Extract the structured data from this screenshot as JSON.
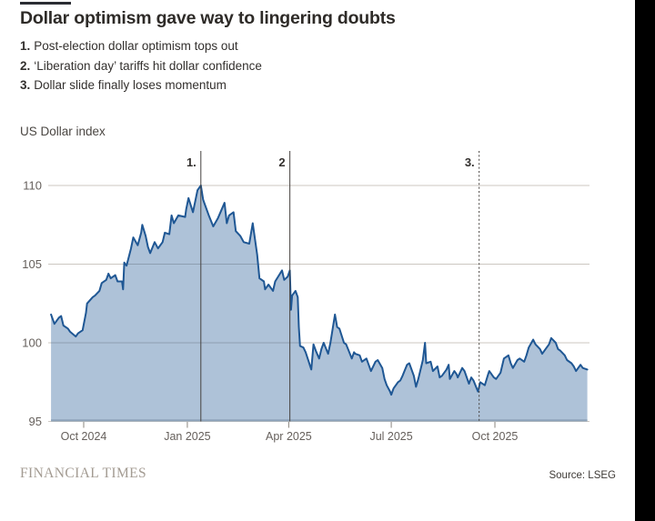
{
  "header": {
    "title": "Dollar optimism gave way to lingering doubts",
    "annotations": [
      {
        "num": "1.",
        "text": "Post-election dollar optimism tops out"
      },
      {
        "num": "2.",
        "text": "‘Liberation day’ tariffs hit dollar confidence"
      },
      {
        "num": "3.",
        "text": "Dollar slide finally loses momentum"
      }
    ]
  },
  "footer": {
    "brand": "FINANCIAL TIMES",
    "source": "Source: LSEG"
  },
  "chart_data": {
    "type": "area",
    "axis_title": "US Dollar index",
    "ylim": [
      95,
      110.8
    ],
    "ytick_labels": [
      "110",
      "105",
      "100",
      "95"
    ],
    "yticks": [
      110,
      105,
      100,
      95
    ],
    "xtick_labels": [
      "Oct 2024",
      "Jan 2025",
      "Apr 2025",
      "Jul 2025",
      "Oct 2025"
    ],
    "xticks": [
      "2024-10-01",
      "2025-01-01",
      "2025-04-01",
      "2025-07-01",
      "2025-10-01"
    ],
    "grid": true,
    "legend": "none",
    "events": [
      {
        "label": "1.",
        "date": "2025-01-13",
        "style": "solid"
      },
      {
        "label": "2",
        "date": "2025-04-02",
        "style": "solid"
      },
      {
        "label": "3.",
        "date": "2025-09-17",
        "style": "dashed"
      }
    ],
    "colors": {
      "line": "#1f5794",
      "fill": "#a9bdd7",
      "grid": "#ccc7c1",
      "event_line": "#46423f",
      "tick_text": "#66605c",
      "baseline_edge": "#8da3ba"
    },
    "series": [
      [
        "2024-09-02",
        101.8
      ],
      [
        "2024-09-05",
        101.2
      ],
      [
        "2024-09-09",
        101.6
      ],
      [
        "2024-09-11",
        101.7
      ],
      [
        "2024-09-13",
        101.1
      ],
      [
        "2024-09-17",
        100.9
      ],
      [
        "2024-09-19",
        100.7
      ],
      [
        "2024-09-24",
        100.4
      ],
      [
        "2024-09-26",
        100.6
      ],
      [
        "2024-09-30",
        100.8
      ],
      [
        "2024-10-03",
        101.9
      ],
      [
        "2024-10-04",
        102.5
      ],
      [
        "2024-10-09",
        102.9
      ],
      [
        "2024-10-11",
        103.0
      ],
      [
        "2024-10-15",
        103.3
      ],
      [
        "2024-10-17",
        103.8
      ],
      [
        "2024-10-21",
        104.0
      ],
      [
        "2024-10-23",
        104.4
      ],
      [
        "2024-10-25",
        104.1
      ],
      [
        "2024-10-29",
        104.3
      ],
      [
        "2024-10-31",
        103.9
      ],
      [
        "2024-11-04",
        103.9
      ],
      [
        "2024-11-05",
        103.4
      ],
      [
        "2024-11-06",
        105.1
      ],
      [
        "2024-11-08",
        104.9
      ],
      [
        "2024-11-12",
        106.0
      ],
      [
        "2024-11-14",
        106.7
      ],
      [
        "2024-11-18",
        106.2
      ],
      [
        "2024-11-21",
        107.0
      ],
      [
        "2024-11-22",
        107.5
      ],
      [
        "2024-11-25",
        106.8
      ],
      [
        "2024-11-27",
        106.1
      ],
      [
        "2024-11-29",
        105.7
      ],
      [
        "2024-12-03",
        106.4
      ],
      [
        "2024-12-06",
        106.0
      ],
      [
        "2024-12-10",
        106.4
      ],
      [
        "2024-12-12",
        107.0
      ],
      [
        "2024-12-16",
        106.9
      ],
      [
        "2024-12-18",
        108.1
      ],
      [
        "2024-12-20",
        107.6
      ],
      [
        "2024-12-24",
        108.1
      ],
      [
        "2024-12-30",
        108.0
      ],
      [
        "2024-12-31",
        108.5
      ],
      [
        "2025-01-02",
        109.2
      ],
      [
        "2025-01-06",
        108.3
      ],
      [
        "2025-01-08",
        109.0
      ],
      [
        "2025-01-10",
        109.7
      ],
      [
        "2025-01-13",
        110.0
      ],
      [
        "2025-01-15",
        109.1
      ],
      [
        "2025-01-16",
        108.9
      ],
      [
        "2025-01-20",
        108.1
      ],
      [
        "2025-01-24",
        107.4
      ],
      [
        "2025-01-28",
        107.9
      ],
      [
        "2025-01-31",
        108.4
      ],
      [
        "2025-02-03",
        108.9
      ],
      [
        "2025-02-05",
        107.6
      ],
      [
        "2025-02-07",
        108.1
      ],
      [
        "2025-02-11",
        108.3
      ],
      [
        "2025-02-13",
        107.1
      ],
      [
        "2025-02-17",
        106.8
      ],
      [
        "2025-02-20",
        106.4
      ],
      [
        "2025-02-25",
        106.3
      ],
      [
        "2025-02-28",
        107.6
      ],
      [
        "2025-03-04",
        105.6
      ],
      [
        "2025-03-06",
        104.1
      ],
      [
        "2025-03-10",
        103.9
      ],
      [
        "2025-03-11",
        103.4
      ],
      [
        "2025-03-14",
        103.7
      ],
      [
        "2025-03-18",
        103.3
      ],
      [
        "2025-03-20",
        103.9
      ],
      [
        "2025-03-26",
        104.6
      ],
      [
        "2025-03-28",
        104.0
      ],
      [
        "2025-03-31",
        104.2
      ],
      [
        "2025-04-02",
        104.6
      ],
      [
        "2025-04-03",
        102.1
      ],
      [
        "2025-04-04",
        103.0
      ],
      [
        "2025-04-07",
        103.3
      ],
      [
        "2025-04-09",
        102.9
      ],
      [
        "2025-04-10",
        101.0
      ],
      [
        "2025-04-11",
        99.8
      ],
      [
        "2025-04-14",
        99.7
      ],
      [
        "2025-04-16",
        99.4
      ],
      [
        "2025-04-21",
        98.3
      ],
      [
        "2025-04-23",
        99.9
      ],
      [
        "2025-04-25",
        99.5
      ],
      [
        "2025-04-28",
        99.0
      ],
      [
        "2025-04-30",
        99.6
      ],
      [
        "2025-05-02",
        100.0
      ],
      [
        "2025-05-06",
        99.3
      ],
      [
        "2025-05-08",
        100.0
      ],
      [
        "2025-05-12",
        101.8
      ],
      [
        "2025-05-14",
        101.0
      ],
      [
        "2025-05-16",
        100.9
      ],
      [
        "2025-05-20",
        100.0
      ],
      [
        "2025-05-22",
        99.9
      ],
      [
        "2025-05-27",
        99.0
      ],
      [
        "2025-05-29",
        99.4
      ],
      [
        "2025-05-30",
        99.3
      ],
      [
        "2025-06-03",
        99.2
      ],
      [
        "2025-06-05",
        98.8
      ],
      [
        "2025-06-09",
        99.0
      ],
      [
        "2025-06-11",
        98.6
      ],
      [
        "2025-06-13",
        98.2
      ],
      [
        "2025-06-17",
        98.8
      ],
      [
        "2025-06-19",
        98.9
      ],
      [
        "2025-06-23",
        98.4
      ],
      [
        "2025-06-25",
        97.7
      ],
      [
        "2025-06-27",
        97.3
      ],
      [
        "2025-06-30",
        96.9
      ],
      [
        "2025-07-01",
        96.7
      ],
      [
        "2025-07-03",
        97.1
      ],
      [
        "2025-07-07",
        97.5
      ],
      [
        "2025-07-09",
        97.6
      ],
      [
        "2025-07-11",
        97.9
      ],
      [
        "2025-07-15",
        98.6
      ],
      [
        "2025-07-17",
        98.7
      ],
      [
        "2025-07-21",
        97.9
      ],
      [
        "2025-07-23",
        97.2
      ],
      [
        "2025-07-25",
        97.7
      ],
      [
        "2025-07-29",
        98.9
      ],
      [
        "2025-07-31",
        100.0
      ],
      [
        "2025-08-01",
        98.7
      ],
      [
        "2025-08-05",
        98.8
      ],
      [
        "2025-08-07",
        98.2
      ],
      [
        "2025-08-11",
        98.5
      ],
      [
        "2025-08-13",
        97.8
      ],
      [
        "2025-08-15",
        97.9
      ],
      [
        "2025-08-19",
        98.3
      ],
      [
        "2025-08-21",
        98.6
      ],
      [
        "2025-08-22",
        97.7
      ],
      [
        "2025-08-26",
        98.2
      ],
      [
        "2025-08-28",
        98.0
      ],
      [
        "2025-08-29",
        97.8
      ],
      [
        "2025-09-02",
        98.4
      ],
      [
        "2025-09-04",
        98.2
      ],
      [
        "2025-09-08",
        97.4
      ],
      [
        "2025-09-10",
        97.8
      ],
      [
        "2025-09-12",
        97.6
      ],
      [
        "2025-09-16",
        96.9
      ],
      [
        "2025-09-18",
        97.5
      ],
      [
        "2025-09-22",
        97.3
      ],
      [
        "2025-09-25",
        98.0
      ],
      [
        "2025-09-26",
        98.2
      ],
      [
        "2025-09-30",
        97.8
      ],
      [
        "2025-10-02",
        97.7
      ],
      [
        "2025-10-06",
        98.1
      ],
      [
        "2025-10-09",
        99.0
      ],
      [
        "2025-10-13",
        99.2
      ],
      [
        "2025-10-15",
        98.7
      ],
      [
        "2025-10-17",
        98.4
      ],
      [
        "2025-10-21",
        98.9
      ],
      [
        "2025-10-23",
        99.0
      ],
      [
        "2025-10-27",
        98.8
      ],
      [
        "2025-10-29",
        99.2
      ],
      [
        "2025-10-31",
        99.7
      ],
      [
        "2025-11-04",
        100.2
      ],
      [
        "2025-11-06",
        99.9
      ],
      [
        "2025-11-10",
        99.6
      ],
      [
        "2025-11-12",
        99.3
      ],
      [
        "2025-11-14",
        99.5
      ],
      [
        "2025-11-18",
        99.9
      ],
      [
        "2025-11-20",
        100.3
      ],
      [
        "2025-11-24",
        100.0
      ],
      [
        "2025-11-26",
        99.6
      ],
      [
        "2025-11-28",
        99.5
      ],
      [
        "2025-12-02",
        99.2
      ],
      [
        "2025-12-04",
        98.9
      ],
      [
        "2025-12-08",
        98.7
      ],
      [
        "2025-12-10",
        98.5
      ],
      [
        "2025-12-12",
        98.2
      ],
      [
        "2025-12-16",
        98.6
      ],
      [
        "2025-12-18",
        98.4
      ],
      [
        "2025-12-22",
        98.3
      ]
    ]
  }
}
